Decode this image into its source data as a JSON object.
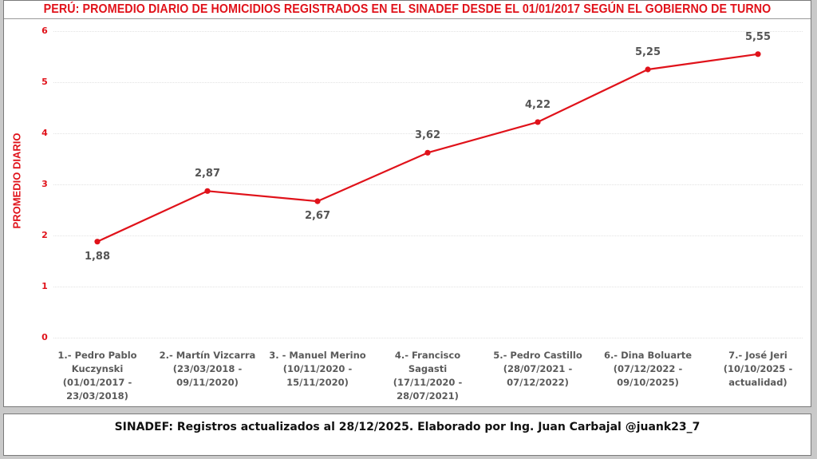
{
  "header": {
    "title": "PERÚ: PROMEDIO DIARIO DE HOMICIDIOS REGISTRADOS EN EL SINADEF DESDE EL 01/01/2017 SEGÚN EL GOBIERNO DE TURNO"
  },
  "axis": {
    "ylabel": "PROMEDIO DIARIO",
    "yticks": [
      "0",
      "1",
      "2",
      "3",
      "4",
      "5",
      "6"
    ]
  },
  "colors": {
    "title": "#e0121a",
    "line": "#e0121a",
    "axis_text": "#e0121a",
    "data_labels": "#555555",
    "category_text": "#5a5a5a"
  },
  "labels": [
    "1,88",
    "2,87",
    "2,67",
    "3,62",
    "4,22",
    "5,25",
    "5,55"
  ],
  "categories": [
    {
      "line1": "1.- Pedro Pablo",
      "line2": "Kuczynski",
      "line3": "(01/01/2017 -",
      "line4": "23/03/2018)"
    },
    {
      "line1": "2.- Martín Vizcarra",
      "line2": "(23/03/2018 -",
      "line3": "09/11/2020)",
      "line4": ""
    },
    {
      "line1": "3. - Manuel Merino",
      "line2": "(10/11/2020 -",
      "line3": "15/11/2020)",
      "line4": ""
    },
    {
      "line1": "4.- Francisco",
      "line2": "Sagasti",
      "line3": "(17/11/2020 -",
      "line4": "28/07/2021)"
    },
    {
      "line1": "5.- Pedro Castillo",
      "line2": "(28/07/2021 -",
      "line3": "07/12/2022)",
      "line4": ""
    },
    {
      "line1": "6.- Dina Boluarte",
      "line2": "(07/12/2022 -",
      "line3": "09/10/2025)",
      "line4": ""
    },
    {
      "line1": "7.- José Jeri",
      "line2": "(10/10/2025 -",
      "line3": "actualidad)",
      "line4": ""
    }
  ],
  "footer": {
    "text": "SINADEF: Registros actualizados al 28/12/2025. Elaborado por Ing. Juan Carbajal @juank23_7"
  },
  "chart_data": {
    "type": "line",
    "title": "PERÚ: PROMEDIO DIARIO DE HOMICIDIOS REGISTRADOS EN EL SINADEF DESDE EL 01/01/2017 SEGÚN EL GOBIERNO DE TURNO",
    "xlabel": "",
    "ylabel": "PROMEDIO DIARIO",
    "ylim": [
      0,
      6
    ],
    "yticks": [
      0,
      1,
      2,
      3,
      4,
      5,
      6
    ],
    "grid": true,
    "legend": "none",
    "categories": [
      "1.- Pedro Pablo Kuczynski (01/01/2017 - 23/03/2018)",
      "2.- Martín Vizcarra (23/03/2018 - 09/11/2020)",
      "3. - Manuel Merino (10/11/2020 - 15/11/2020)",
      "4.- Francisco Sagasti (17/11/2020 - 28/07/2021)",
      "5.- Pedro Castillo (28/07/2021 - 07/12/2022)",
      "6.- Dina Boluarte (07/12/2022 - 09/10/2025)",
      "7.- José Jeri (10/10/2025 - actualidad)"
    ],
    "series": [
      {
        "name": "Promedio diario de homicidios",
        "values": [
          1.88,
          2.87,
          2.67,
          3.62,
          4.22,
          5.25,
          5.55
        ]
      }
    ],
    "annotations": [
      "SINADEF: Registros actualizados al 28/12/2025. Elaborado por Ing. Juan Carbajal @juank23_7"
    ]
  }
}
